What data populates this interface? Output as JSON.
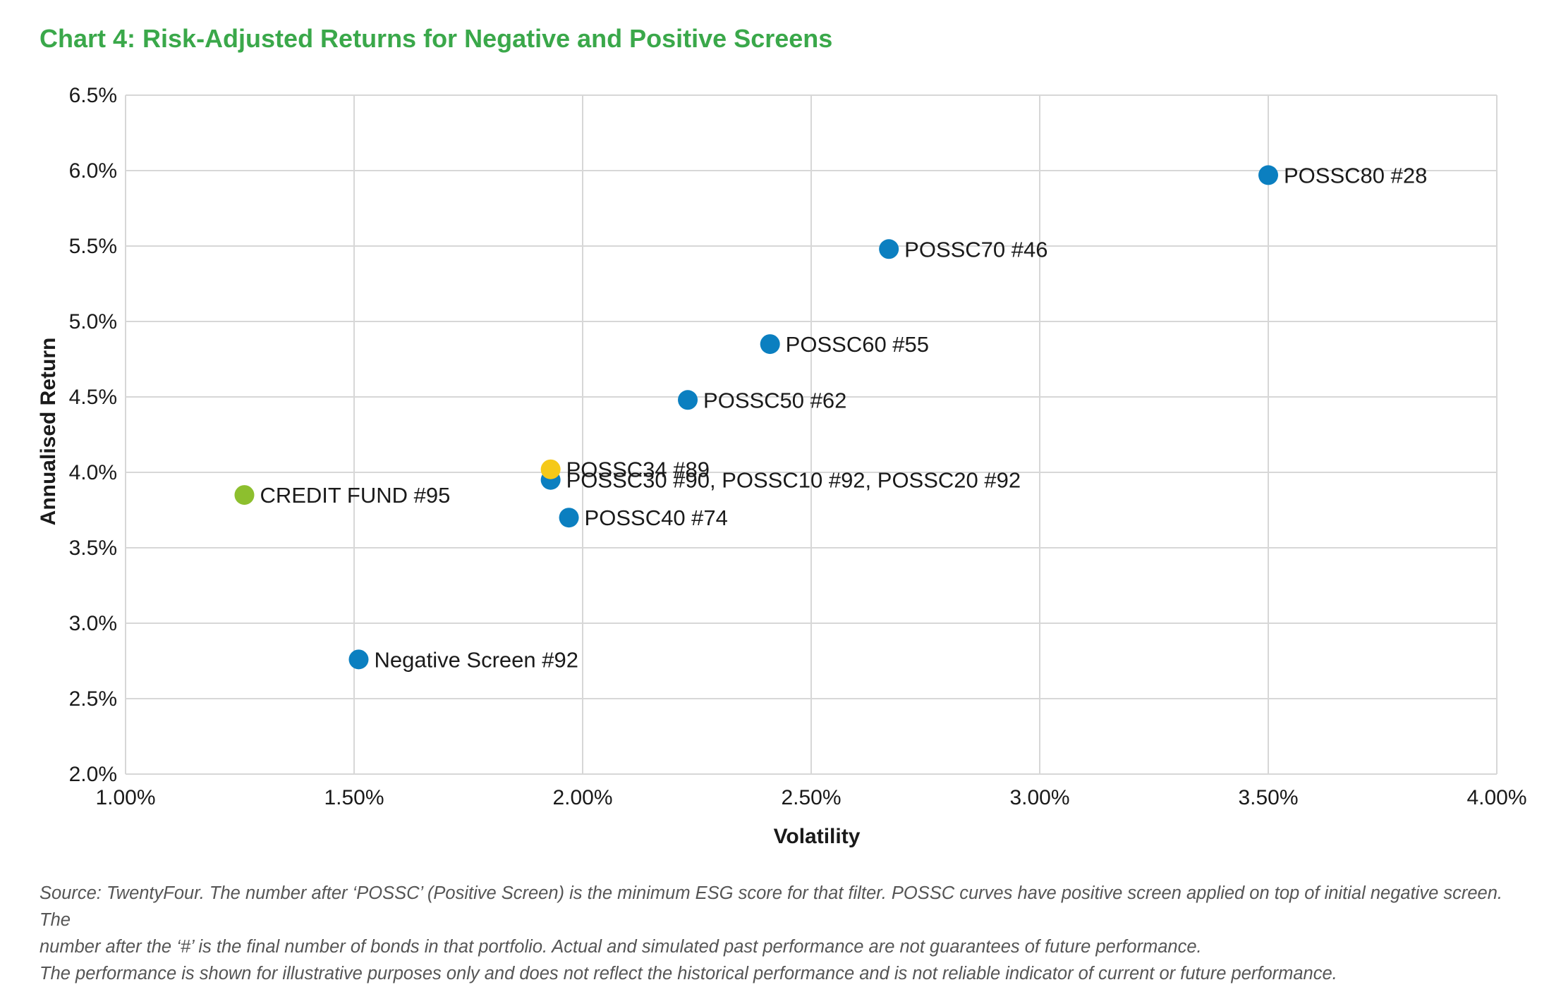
{
  "chart_data": {
    "type": "scatter",
    "title": "Chart 4: Risk-Adjusted Returns for Negative and Positive Screens",
    "xlabel": "Volatility",
    "ylabel": "Annualised Return",
    "xlim": [
      1.0,
      4.0
    ],
    "ylim": [
      2.0,
      6.5
    ],
    "x_ticks": [
      1.0,
      1.5,
      2.0,
      2.5,
      3.0,
      3.5,
      4.0
    ],
    "y_ticks": [
      2.0,
      2.5,
      3.0,
      3.5,
      4.0,
      4.5,
      5.0,
      5.5,
      6.0,
      6.5
    ],
    "x_tick_labels": [
      "1.00%",
      "1.50%",
      "2.00%",
      "2.50%",
      "3.00%",
      "3.50%",
      "4.00%"
    ],
    "y_tick_labels": [
      "2.0%",
      "2.5%",
      "3.0%",
      "3.5%",
      "4.0%",
      "4.5%",
      "5.0%",
      "5.5%",
      "6.0%",
      "6.5%"
    ],
    "grid": true,
    "colors": {
      "blue": "#0b7fc0",
      "yellow": "#f5c918",
      "green": "#8dbf2e",
      "title": "#3aa84a",
      "grid": "#d7d7d7"
    },
    "points": [
      {
        "label": "POSSC80 #28",
        "x": 3.5,
        "y": 5.97,
        "color": "#0b7fc0"
      },
      {
        "label": "POSSC70 #46",
        "x": 2.67,
        "y": 5.48,
        "color": "#0b7fc0"
      },
      {
        "label": "POSSC60 #55",
        "x": 2.41,
        "y": 4.85,
        "color": "#0b7fc0"
      },
      {
        "label": "POSSC50 #62",
        "x": 2.23,
        "y": 4.48,
        "color": "#0b7fc0"
      },
      {
        "label": "POSSC30 #90,  POSSC10 #92,  POSSC20 #92",
        "x": 1.93,
        "y": 3.95,
        "color": "#0b7fc0"
      },
      {
        "label": "POSSC34 #89",
        "x": 1.93,
        "y": 4.02,
        "color": "#f5c918"
      },
      {
        "label": "POSSC40 #74",
        "x": 1.97,
        "y": 3.7,
        "color": "#0b7fc0"
      },
      {
        "label": "CREDIT FUND #95",
        "x": 1.26,
        "y": 3.85,
        "color": "#8dbf2e"
      },
      {
        "label": "Negative Screen #92",
        "x": 1.51,
        "y": 2.76,
        "color": "#0b7fc0"
      }
    ]
  },
  "footnote": {
    "line1": "Source: TwentyFour. The number after ‘POSSC’ (Positive Screen) is the minimum ESG score for that filter. POSSC curves have positive screen applied on top of initial negative screen. The",
    "line2": "number after the ‘#’ is the final number of bonds in that portfolio. Actual and simulated past performance are not guarantees of future performance.",
    "line3": "The performance is shown for illustrative purposes only and does not reflect the historical performance and is not reliable indicator of current or future performance."
  }
}
